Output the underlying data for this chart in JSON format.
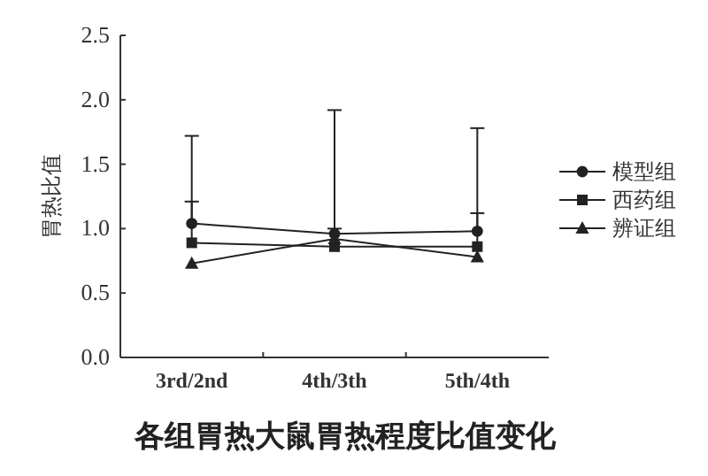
{
  "chart_data": {
    "type": "line",
    "title": "各组胃热大鼠胃热程度比值变化",
    "ylabel": "胃热比值",
    "categories": [
      "3rd/2nd",
      "4th/3th",
      "5th/4th"
    ],
    "series": [
      {
        "name": "模型组",
        "color": "#222222",
        "marker": "circle",
        "values": [
          1.04,
          0.96,
          0.98
        ],
        "errors": [
          [
            1.04,
            1.72
          ],
          [
            0.96,
            1.92
          ],
          [
            0.98,
            1.78
          ]
        ]
      },
      {
        "name": "西药组",
        "color": "#222222",
        "marker": "square",
        "values": [
          0.89,
          0.86,
          0.86
        ],
        "errors": [
          [
            0.89,
            1.21
          ],
          [
            0.86,
            1.0
          ],
          [
            0.86,
            1.12
          ]
        ]
      },
      {
        "name": "辨证组",
        "color": "#222222",
        "marker": "triangle",
        "values": [
          0.73,
          0.92,
          0.78
        ]
      }
    ],
    "ylim": [
      0,
      2.5
    ],
    "yticks": [
      {
        "value": 0,
        "label": "0.0"
      },
      {
        "value": 0.5,
        "label": "0.5"
      },
      {
        "value": 1,
        "label": "1.0"
      },
      {
        "value": 1.5,
        "label": "1.5"
      },
      {
        "value": 2,
        "label": "2.0"
      },
      {
        "value": 2.5,
        "label": "2.5"
      }
    ],
    "grid": false,
    "legend": "right",
    "line_style": "solid"
  }
}
